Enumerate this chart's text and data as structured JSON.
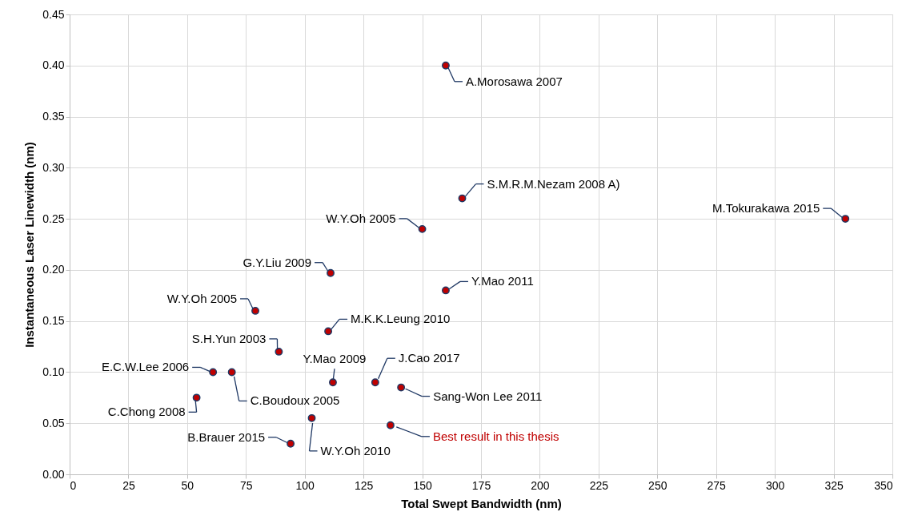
{
  "chart_data": {
    "type": "scatter",
    "xlabel": "Total Swept Bandwidth (nm)",
    "ylabel": "Instantaneous Laser Linewidth (nm)",
    "x": [
      160,
      167,
      330,
      150,
      111,
      160,
      79,
      110,
      89,
      61,
      69,
      112,
      130,
      141,
      54,
      103,
      136.5,
      94
    ],
    "series": [
      {
        "color": "#c00000",
        "values": [
          0.4,
          0.27,
          0.25,
          0.24,
          0.197,
          0.18,
          0.16,
          0.14,
          0.12,
          0.1,
          0.1,
          0.09,
          0.09,
          0.085,
          0.075,
          0.055,
          0.048,
          0.03
        ]
      }
    ],
    "xlim": [
      0,
      350
    ],
    "xticks": [
      0,
      25,
      50,
      75,
      100,
      125,
      150,
      175,
      200,
      225,
      250,
      275,
      300,
      325,
      350
    ],
    "ylim": [
      0,
      0.45
    ],
    "yticks": [
      {
        "value": 0,
        "label": "0.00"
      },
      0.05,
      {
        "value": 0.1,
        "label": "0.10"
      },
      0.15,
      {
        "value": 0.2,
        "label": "0.20"
      },
      0.25,
      {
        "value": 0.3,
        "label": "0.30"
      },
      0.35,
      {
        "value": 0.4,
        "label": "0.40"
      },
      0.45
    ],
    "grid": true,
    "marker": "circle",
    "annotations": [
      {
        "text": "A.Morosawa 2007",
        "x": 160,
        "y": 0.4
      },
      {
        "text": "S.M.R.M.Nezam 2008 A)",
        "x": 167,
        "y": 0.27
      },
      {
        "text": "M.Tokurakawa 2015",
        "x": 330,
        "y": 0.25
      },
      {
        "text": "W.Y.Oh 2005",
        "x": 150,
        "y": 0.24
      },
      {
        "text": "G.Y.Liu 2009",
        "x": 111,
        "y": 0.197
      },
      {
        "text": "Y.Mao 2011",
        "x": 160,
        "y": 0.18
      },
      {
        "text": "W.Y.Oh 2005",
        "x": 79,
        "y": 0.16
      },
      {
        "text": "M.K.K.Leung 2010",
        "x": 110,
        "y": 0.14
      },
      {
        "text": "S.H.Yun 2003",
        "x": 89,
        "y": 0.12
      },
      {
        "text": "E.C.W.Lee 2006",
        "x": 61,
        "y": 0.1
      },
      {
        "text": "C.Boudoux 2005",
        "x": 69,
        "y": 0.1
      },
      {
        "text": "Y.Mao 2009",
        "x": 112,
        "y": 0.09
      },
      {
        "text": "J.Cao 2017",
        "x": 130,
        "y": 0.09
      },
      {
        "text": "Sang-Won Lee 2011",
        "x": 141,
        "y": 0.085
      },
      {
        "text": "C.Chong 2008",
        "x": 54,
        "y": 0.075
      },
      {
        "text": "W.Y.Oh 2010",
        "x": 103,
        "y": 0.055
      },
      {
        "text": "Best result in this thesis",
        "x": 136.5,
        "y": 0.048
      },
      {
        "text": "B.Brauer 2015",
        "x": 94,
        "y": 0.03
      }
    ]
  }
}
